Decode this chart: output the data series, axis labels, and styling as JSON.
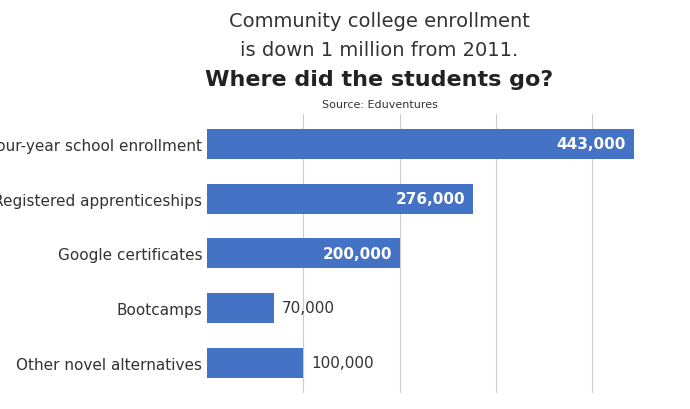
{
  "title_line1": "Community college enrollment",
  "title_line2": "is down 1 million from 2011.",
  "title_line3": "Where did the students go?",
  "source_text": "Source: Eduventures",
  "categories": [
    "Four-year school enrollment",
    "Registered apprenticeships",
    "Google certificates",
    "Bootcamps",
    "Other novel alternatives"
  ],
  "values": [
    443000,
    276000,
    200000,
    70000,
    100000
  ],
  "labels": [
    "443,000",
    "276,000",
    "200,000",
    "70,000",
    "100,000"
  ],
  "bar_color": "#4472C4",
  "bar_color_dark": "#2E5499",
  "text_color_inside": "#FFFFFF",
  "text_color_outside": "#333333",
  "background_color": "#FFFFFF",
  "xlim": [
    0,
    480000
  ],
  "title_fontsize": 14,
  "subtitle_fontsize": 16,
  "label_fontsize": 11,
  "value_fontsize": 11,
  "source_fontsize": 8,
  "inside_threshold": 150000
}
